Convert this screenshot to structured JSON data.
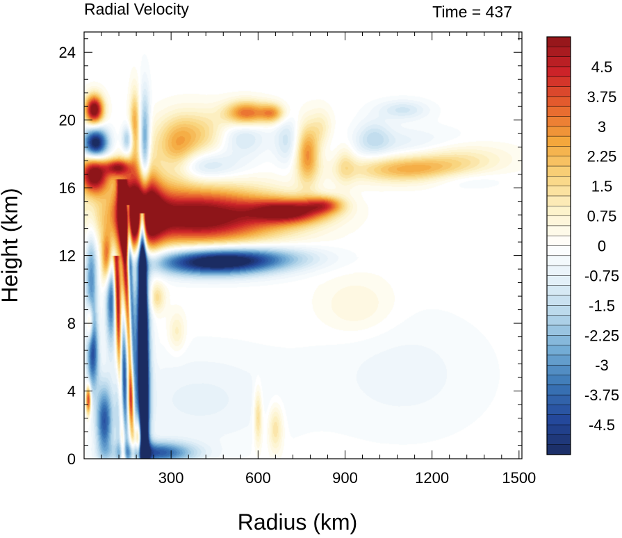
{
  "chart_data": {
    "type": "heatmap",
    "title": "Radial Velocity",
    "right_title": "Time = 437",
    "xlabel": "Radius (km)",
    "ylabel": "Height (km)",
    "xlim": [
      0,
      1510
    ],
    "ylim": [
      0,
      25.2
    ],
    "x_ticks": [
      "300",
      "600",
      "900",
      "1200",
      "1500"
    ],
    "x_tick_values": [
      300,
      600,
      900,
      1200,
      1500
    ],
    "y_ticks": [
      "0",
      "4",
      "8",
      "12",
      "16",
      "20",
      "24"
    ],
    "y_tick_values": [
      0,
      4,
      8,
      12,
      16,
      20,
      24
    ],
    "colorbar": {
      "range": [
        -5.25,
        5.25
      ],
      "step": 0.25,
      "labels": [
        "4.5",
        "3.75",
        "3",
        "2.25",
        "1.5",
        "0.75",
        "0",
        "-0.75",
        "-1.5",
        "-2.25",
        "-3",
        "-3.75",
        "-4.5"
      ],
      "label_values": [
        4.5,
        3.75,
        3,
        2.25,
        1.5,
        0.75,
        0,
        -0.75,
        -1.5,
        -2.25,
        -3,
        -3.75,
        -4.5
      ],
      "colormap": [
        "#1b2c62",
        "#24489b",
        "#3a76b6",
        "#73acd5",
        "#b5d6ea",
        "#e3f0f8",
        "#ffffff",
        "#fdf3cc",
        "#f9d57f",
        "#f4a73c",
        "#e7632e",
        "#cc2329",
        "#8e1519"
      ]
    },
    "features": [
      {
        "x": 390,
        "y": 14.3,
        "sx": 200,
        "sy": 1.15,
        "v": 6.0
      },
      {
        "x": 190,
        "y": 14.8,
        "sx": 50,
        "sy": 1.9,
        "v": 6.0
      },
      {
        "x": 710,
        "y": 14.6,
        "sx": 90,
        "sy": 0.5,
        "v": 4.5
      },
      {
        "x": 830,
        "y": 15.0,
        "sx": 45,
        "sy": 0.35,
        "v": 2.8
      },
      {
        "x": 440,
        "y": 11.6,
        "sx": 150,
        "sy": 0.55,
        "v": -5.5
      },
      {
        "x": 600,
        "y": 11.9,
        "sx": 150,
        "sy": 0.5,
        "v": -2.0
      },
      {
        "x": 35,
        "y": 16.8,
        "sx": 35,
        "sy": 0.8,
        "v": 6.0
      },
      {
        "x": 40,
        "y": 18.6,
        "sx": 30,
        "sy": 0.65,
        "v": -6.0
      },
      {
        "x": 35,
        "y": 20.6,
        "sx": 22,
        "sy": 0.6,
        "v": 6.0
      },
      {
        "x": 115,
        "y": 17.2,
        "sx": 30,
        "sy": 0.35,
        "v": 4.0
      },
      {
        "x": 150,
        "y": 18.8,
        "sx": 14,
        "sy": 0.6,
        "v": -2.5
      },
      {
        "x": 175,
        "y": 19.8,
        "sx": 12,
        "sy": 1.4,
        "v": 2.5
      },
      {
        "x": 210,
        "y": 18.6,
        "sx": 12,
        "sy": 2.0,
        "v": -3.0
      },
      {
        "x": 200,
        "y": 5.5,
        "sx": 18,
        "sy": 5.8,
        "v": -6.0
      },
      {
        "x": 135,
        "y": 4.5,
        "sx": 14,
        "sy": 3.5,
        "v": -5.0
      },
      {
        "x": 95,
        "y": 9.5,
        "sx": 14,
        "sy": 2.0,
        "v": -4.0
      },
      {
        "x": 30,
        "y": 6.2,
        "sx": 14,
        "sy": 1.5,
        "v": -4.0
      },
      {
        "x": 25,
        "y": 10.5,
        "sx": 14,
        "sy": 2.0,
        "v": -3.0
      },
      {
        "x": 70,
        "y": 2.2,
        "sx": 20,
        "sy": 1.5,
        "v": -4.0
      },
      {
        "x": 120,
        "y": 9.3,
        "sx": 12,
        "sy": 2.5,
        "v": 3.0
      },
      {
        "x": 80,
        "y": 11.8,
        "sx": 14,
        "sy": 1.0,
        "v": 4.0
      },
      {
        "x": 160,
        "y": 3.5,
        "sx": 9,
        "sy": 1.2,
        "v": 3.0
      },
      {
        "x": 185,
        "y": 1.0,
        "sx": 9,
        "sy": 1.0,
        "v": 4.0
      },
      {
        "x": 15,
        "y": 3.5,
        "sx": 6,
        "sy": 0.6,
        "v": 4.5
      },
      {
        "x": 20,
        "y": 8.0,
        "sx": 8,
        "sy": 0.8,
        "v": 3.0
      },
      {
        "x": 250,
        "y": 0.35,
        "sx": 90,
        "sy": 0.45,
        "v": -4.0
      },
      {
        "x": 250,
        "y": 9.5,
        "sx": 20,
        "sy": 0.6,
        "v": 1.5
      },
      {
        "x": 320,
        "y": 7.5,
        "sx": 20,
        "sy": 0.8,
        "v": 1.0
      },
      {
        "x": 400,
        "y": 3.5,
        "sx": 200,
        "sy": 2.0,
        "v": -0.7
      },
      {
        "x": 320,
        "y": 18.0,
        "sx": 45,
        "sy": 1.2,
        "v": 1.8
      },
      {
        "x": 390,
        "y": 19.2,
        "sx": 90,
        "sy": 1.0,
        "v": 1.8
      },
      {
        "x": 560,
        "y": 20.4,
        "sx": 50,
        "sy": 0.5,
        "v": 3.5
      },
      {
        "x": 650,
        "y": 20.4,
        "sx": 30,
        "sy": 0.4,
        "v": 2.5
      },
      {
        "x": 410,
        "y": 17.3,
        "sx": 90,
        "sy": 0.6,
        "v": -1.5
      },
      {
        "x": 540,
        "y": 19.0,
        "sx": 60,
        "sy": 0.8,
        "v": -1.5
      },
      {
        "x": 700,
        "y": 18.8,
        "sx": 30,
        "sy": 1.0,
        "v": -1.2
      },
      {
        "x": 770,
        "y": 18.0,
        "sx": 28,
        "sy": 1.2,
        "v": 3.0
      },
      {
        "x": 820,
        "y": 19.5,
        "sx": 25,
        "sy": 0.8,
        "v": 1.0
      },
      {
        "x": 900,
        "y": 17.5,
        "sx": 25,
        "sy": 1.0,
        "v": 1.0
      },
      {
        "x": 1120,
        "y": 17.1,
        "sx": 140,
        "sy": 0.55,
        "v": 2.5
      },
      {
        "x": 1300,
        "y": 17.8,
        "sx": 120,
        "sy": 0.6,
        "v": 1.0
      },
      {
        "x": 1100,
        "y": 20.6,
        "sx": 60,
        "sy": 0.4,
        "v": -1.2
      },
      {
        "x": 1080,
        "y": 18.6,
        "sx": 150,
        "sy": 0.7,
        "v": -0.8
      },
      {
        "x": 1000,
        "y": 19.0,
        "sx": 40,
        "sy": 0.8,
        "v": -1.0
      },
      {
        "x": 1300,
        "y": 16.5,
        "sx": 100,
        "sy": 0.4,
        "v": -0.6
      },
      {
        "x": 940,
        "y": 9.0,
        "sx": 90,
        "sy": 1.2,
        "v": 0.7
      },
      {
        "x": 1100,
        "y": 5.0,
        "sx": 200,
        "sy": 2.5,
        "v": -0.5
      },
      {
        "x": 660,
        "y": 1.8,
        "sx": 18,
        "sy": 1.0,
        "v": 1.5
      },
      {
        "x": 600,
        "y": 2.5,
        "sx": 10,
        "sy": 1.2,
        "v": 1.8
      }
    ],
    "streaks": [
      {
        "x_start": 180,
        "x_end": 130,
        "y_start": 0,
        "y_end": 16.5,
        "width": 10,
        "v": 6.0
      },
      {
        "x_start": 210,
        "x_end": 200,
        "y_start": 0,
        "y_end": 14.5,
        "width": 8,
        "v": -6.0
      },
      {
        "x_start": 180,
        "x_end": 150,
        "y_start": 0,
        "y_end": 15.0,
        "width": 7,
        "v": -5.5
      },
      {
        "x_start": 135,
        "x_end": 110,
        "y_start": 0,
        "y_end": 12.0,
        "width": 7,
        "v": 4.0
      }
    ]
  }
}
